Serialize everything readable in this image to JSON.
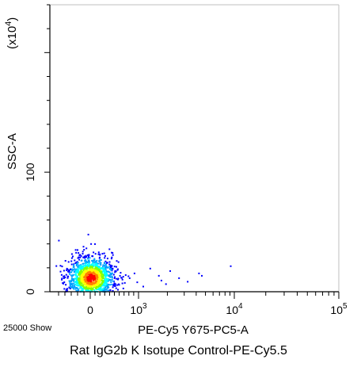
{
  "caption": "Rat IgG2b K Isotupe Control-PE-Cy5.5",
  "chart_data": {
    "type": "scatter",
    "plot": "flow cytometry density dot plot",
    "xlabel": "PE-Cy5 Y675-PC5-A",
    "ylabel": "SSC-A",
    "y_multiplier": "(x10^4)",
    "event_count": "25000 Show",
    "x_scale": "biexponential",
    "y_scale": "linear",
    "x_ticks": [
      {
        "value": 0,
        "label": "0"
      },
      {
        "value": 1000,
        "label": "10^3"
      },
      {
        "value": 10000,
        "label": "10^4"
      },
      {
        "value": 100000,
        "label": "10^5"
      }
    ],
    "y_ticks": [
      {
        "value": 0,
        "label": "0"
      },
      {
        "value": 100,
        "label": "100"
      }
    ],
    "ylim": [
      0,
      240
    ],
    "populations": [
      {
        "name": "main-cluster",
        "x_center": 0,
        "y_center": 12,
        "x_spread_decades": 0.45,
        "y_spread": 9,
        "peak_color": "#ff0000"
      }
    ],
    "density_colors": [
      "#0000ff",
      "#00a0ff",
      "#00ffff",
      "#80ff00",
      "#ffff00",
      "#ff8000",
      "#ff0000"
    ],
    "scattered_events": [
      {
        "x": 600,
        "y": 14
      },
      {
        "x": 700,
        "y": 8
      },
      {
        "x": 800,
        "y": 12
      },
      {
        "x": 900,
        "y": 16
      },
      {
        "x": 1300,
        "y": 20
      },
      {
        "x": 1600,
        "y": 14
      },
      {
        "x": 1700,
        "y": 10
      },
      {
        "x": 1900,
        "y": 7
      },
      {
        "x": 2100,
        "y": 18
      },
      {
        "x": 2600,
        "y": 12
      },
      {
        "x": 3200,
        "y": 9
      },
      {
        "x": 4200,
        "y": 16
      },
      {
        "x": 4500,
        "y": 14
      },
      {
        "x": 9000,
        "y": 22
      },
      {
        "x": 500,
        "y": 6
      },
      {
        "x": 1100,
        "y": 5
      }
    ]
  }
}
